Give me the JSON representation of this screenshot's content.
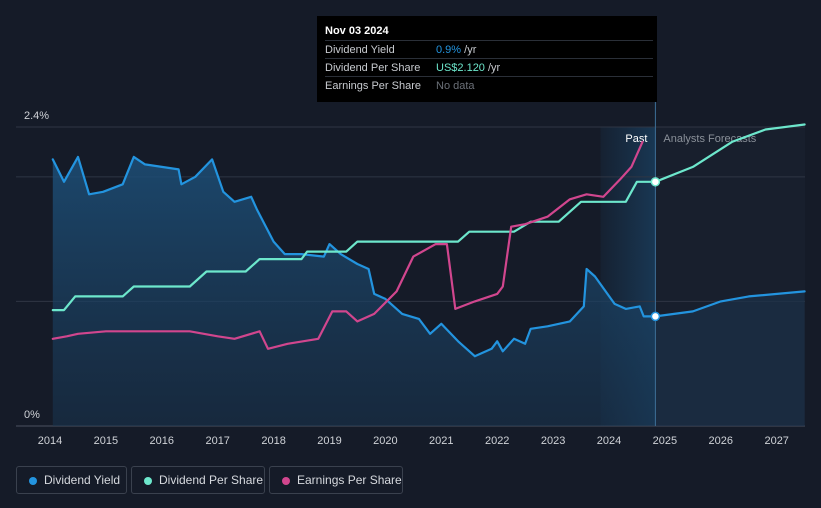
{
  "tooltip": {
    "date": "Nov 03 2024",
    "rows": [
      {
        "label": "Dividend Yield",
        "value": "0.9%",
        "unit": " /yr",
        "color": "#2394df"
      },
      {
        "label": "Dividend Per Share",
        "value": "US$2.120",
        "unit": " /yr",
        "color": "#6de7cc"
      },
      {
        "label": "Earnings Per Share",
        "value": "No data",
        "unit": "",
        "color": "#6b7078"
      }
    ]
  },
  "period_labels": {
    "past": "Past",
    "forecast": "Analysts Forecasts"
  },
  "legend": [
    {
      "label": "Dividend Yield",
      "color": "#2394df"
    },
    {
      "label": "Dividend Per Share",
      "color": "#6de7cc"
    },
    {
      "label": "Earnings Per Share",
      "color": "#d1468e"
    }
  ],
  "chart_data": {
    "type": "line",
    "y_ticks": [
      {
        "value": 2.4,
        "label": "2.4%"
      },
      {
        "value": 0,
        "label": "0%"
      }
    ],
    "ylim": [
      0,
      2.4
    ],
    "xlim": [
      2014.0,
      2027.5
    ],
    "x_ticks": [
      2014,
      2015,
      2016,
      2017,
      2018,
      2019,
      2020,
      2021,
      2022,
      2023,
      2024,
      2025,
      2026,
      2027
    ],
    "forecast_start": 2024.83,
    "highlight_start": 2023.85,
    "series": [
      {
        "name": "Dividend Yield",
        "color": "#2394df",
        "points": [
          [
            2014.05,
            2.14
          ],
          [
            2014.25,
            1.96
          ],
          [
            2014.5,
            2.16
          ],
          [
            2014.7,
            1.86
          ],
          [
            2014.95,
            1.88
          ],
          [
            2015.3,
            1.94
          ],
          [
            2015.5,
            2.16
          ],
          [
            2015.7,
            2.1
          ],
          [
            2016.0,
            2.08
          ],
          [
            2016.3,
            2.06
          ],
          [
            2016.35,
            1.94
          ],
          [
            2016.6,
            2.0
          ],
          [
            2016.9,
            2.14
          ],
          [
            2017.1,
            1.88
          ],
          [
            2017.3,
            1.8
          ],
          [
            2017.6,
            1.84
          ],
          [
            2017.7,
            1.74
          ],
          [
            2018.0,
            1.48
          ],
          [
            2018.2,
            1.38
          ],
          [
            2018.5,
            1.38
          ],
          [
            2018.9,
            1.36
          ],
          [
            2019.0,
            1.46
          ],
          [
            2019.2,
            1.38
          ],
          [
            2019.5,
            1.3
          ],
          [
            2019.7,
            1.26
          ],
          [
            2019.8,
            1.06
          ],
          [
            2020.0,
            1.02
          ],
          [
            2020.3,
            0.9
          ],
          [
            2020.6,
            0.86
          ],
          [
            2020.8,
            0.74
          ],
          [
            2021.0,
            0.82
          ],
          [
            2021.3,
            0.68
          ],
          [
            2021.6,
            0.56
          ],
          [
            2021.9,
            0.62
          ],
          [
            2022.0,
            0.68
          ],
          [
            2022.1,
            0.6
          ],
          [
            2022.3,
            0.7
          ],
          [
            2022.5,
            0.66
          ],
          [
            2022.6,
            0.78
          ],
          [
            2022.9,
            0.8
          ],
          [
            2023.3,
            0.84
          ],
          [
            2023.55,
            0.96
          ],
          [
            2023.6,
            1.26
          ],
          [
            2023.75,
            1.2
          ],
          [
            2024.1,
            0.98
          ],
          [
            2024.3,
            0.94
          ],
          [
            2024.55,
            0.96
          ],
          [
            2024.62,
            0.88
          ],
          [
            2024.83,
            0.88
          ],
          [
            2025.5,
            0.92
          ],
          [
            2026.0,
            1.0
          ],
          [
            2026.5,
            1.04
          ],
          [
            2027.5,
            1.08
          ]
        ]
      },
      {
        "name": "Dividend Per Share",
        "color": "#6de7cc",
        "points": [
          [
            2014.05,
            0.93
          ],
          [
            2014.25,
            0.93
          ],
          [
            2014.45,
            1.04
          ],
          [
            2015.3,
            1.04
          ],
          [
            2015.5,
            1.12
          ],
          [
            2016.5,
            1.12
          ],
          [
            2016.8,
            1.24
          ],
          [
            2017.5,
            1.24
          ],
          [
            2017.75,
            1.34
          ],
          [
            2018.5,
            1.34
          ],
          [
            2018.6,
            1.4
          ],
          [
            2019.3,
            1.4
          ],
          [
            2019.5,
            1.48
          ],
          [
            2021.3,
            1.48
          ],
          [
            2021.5,
            1.56
          ],
          [
            2022.3,
            1.56
          ],
          [
            2022.6,
            1.64
          ],
          [
            2023.1,
            1.64
          ],
          [
            2023.5,
            1.8
          ],
          [
            2024.3,
            1.8
          ],
          [
            2024.5,
            1.96
          ],
          [
            2024.83,
            1.96
          ],
          [
            2025.5,
            2.08
          ],
          [
            2026.2,
            2.28
          ],
          [
            2026.8,
            2.38
          ],
          [
            2027.5,
            2.42
          ]
        ]
      },
      {
        "name": "Earnings Per Share",
        "color": "#d1468e",
        "points": [
          [
            2014.05,
            0.7
          ],
          [
            2014.3,
            0.72
          ],
          [
            2014.5,
            0.74
          ],
          [
            2015.0,
            0.76
          ],
          [
            2016.0,
            0.76
          ],
          [
            2016.5,
            0.76
          ],
          [
            2017.0,
            0.72
          ],
          [
            2017.3,
            0.7
          ],
          [
            2017.75,
            0.76
          ],
          [
            2017.9,
            0.62
          ],
          [
            2018.25,
            0.66
          ],
          [
            2018.8,
            0.7
          ],
          [
            2019.05,
            0.92
          ],
          [
            2019.3,
            0.92
          ],
          [
            2019.5,
            0.84
          ],
          [
            2019.8,
            0.9
          ],
          [
            2020.2,
            1.08
          ],
          [
            2020.5,
            1.36
          ],
          [
            2020.9,
            1.46
          ],
          [
            2021.1,
            1.46
          ],
          [
            2021.25,
            0.94
          ],
          [
            2021.6,
            1.0
          ],
          [
            2022.0,
            1.06
          ],
          [
            2022.1,
            1.12
          ],
          [
            2022.25,
            1.6
          ],
          [
            2022.5,
            1.62
          ],
          [
            2022.9,
            1.68
          ],
          [
            2023.3,
            1.82
          ],
          [
            2023.6,
            1.86
          ],
          [
            2023.9,
            1.84
          ],
          [
            2024.2,
            1.98
          ],
          [
            2024.4,
            2.08
          ],
          [
            2024.6,
            2.28
          ]
        ]
      }
    ]
  }
}
